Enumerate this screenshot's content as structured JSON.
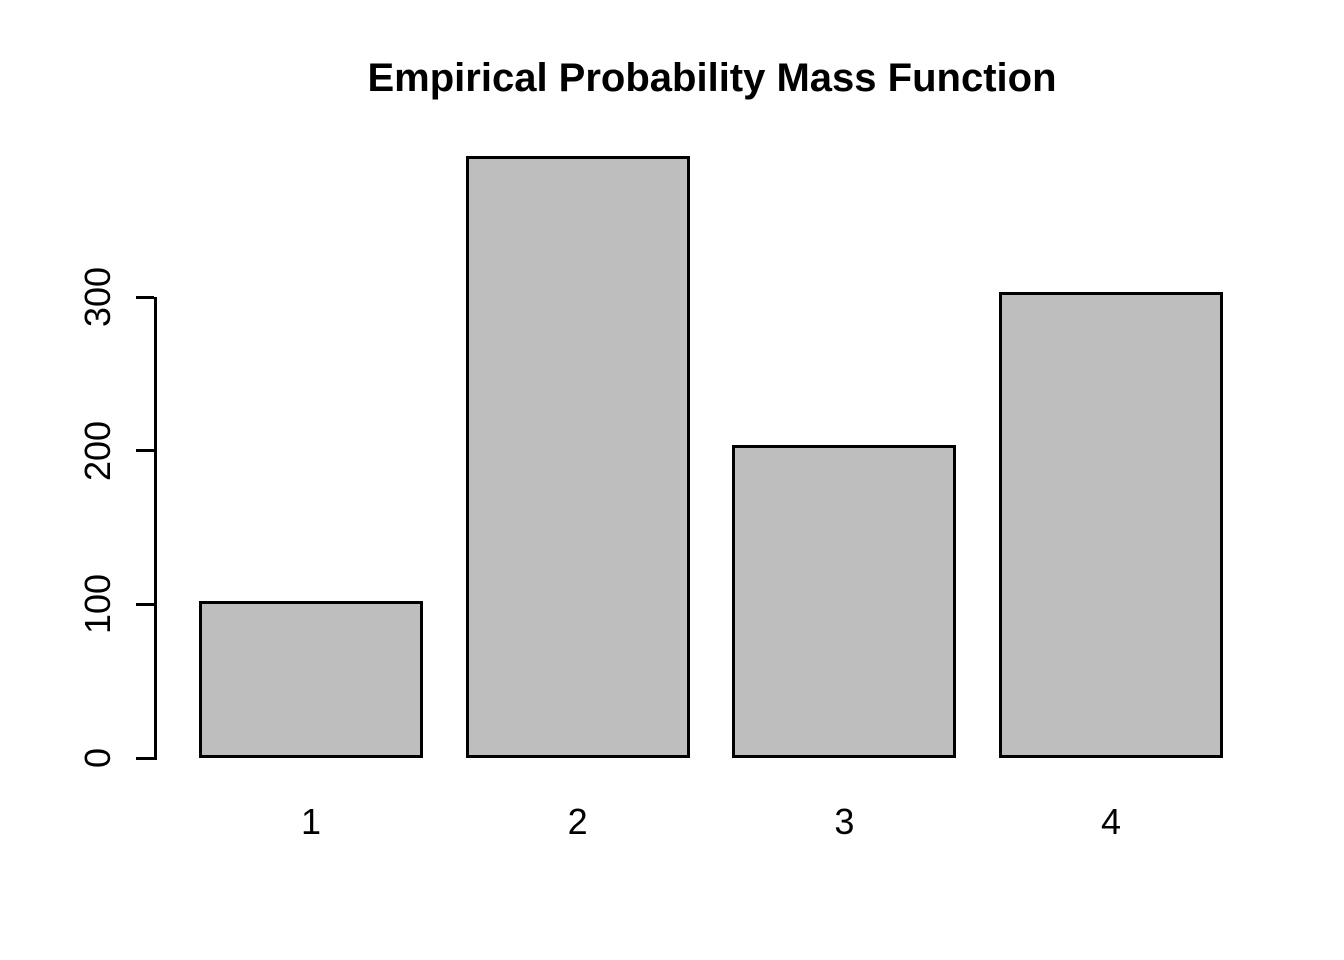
{
  "chart_data": {
    "type": "bar",
    "title": "Empirical Probability Mass Function",
    "categories": [
      "1",
      "2",
      "3",
      "4"
    ],
    "values": [
      102,
      392,
      204,
      303
    ],
    "xlabel": "",
    "ylabel": "",
    "yticks": [
      0,
      100,
      200,
      300
    ],
    "ylim": [
      0,
      400
    ],
    "grid": false,
    "legend_position": "none",
    "bar_fill_color": "#bebebe",
    "bar_border_color": "#000000",
    "axis_color": "#000000",
    "background_color": "#ffffff",
    "text_color": "#000000"
  }
}
